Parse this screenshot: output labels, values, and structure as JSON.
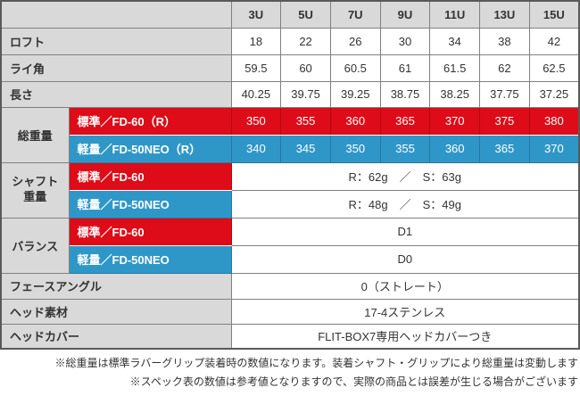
{
  "spec_table": {
    "corner": "",
    "columns": [
      "3U",
      "5U",
      "7U",
      "9U",
      "11U",
      "13U",
      "15U"
    ],
    "rows": {
      "loft": {
        "label": "ロフト",
        "values": [
          "18",
          "22",
          "26",
          "30",
          "34",
          "38",
          "42"
        ]
      },
      "lie": {
        "label": "ライ角",
        "values": [
          "59.5",
          "60",
          "60.5",
          "61",
          "61.5",
          "62",
          "62.5"
        ]
      },
      "length": {
        "label": "長さ",
        "values": [
          "40.25",
          "39.75",
          "39.25",
          "38.75",
          "38.25",
          "37.75",
          "37.25"
        ]
      },
      "total_weight": {
        "label": "総重量",
        "standard": {
          "sublabel": "標準／FD-60（R）",
          "values": [
            "350",
            "355",
            "360",
            "365",
            "370",
            "375",
            "380"
          ]
        },
        "light": {
          "sublabel": "軽量／FD-50NEO（R）",
          "values": [
            "340",
            "345",
            "350",
            "355",
            "360",
            "365",
            "370"
          ]
        }
      },
      "shaft_weight": {
        "label": "シャフト\n重量",
        "standard": {
          "sublabel": "標準／FD-60",
          "value": "R：62g　／　S：63g"
        },
        "light": {
          "sublabel": "軽量／FD-50NEO",
          "value": "R：48g　／　S：49g"
        }
      },
      "balance": {
        "label": "バランス",
        "standard": {
          "sublabel": "標準／FD-60",
          "value": "D1"
        },
        "light": {
          "sublabel": "軽量／FD-50NEO",
          "value": "D0"
        }
      },
      "face_angle": {
        "label": "フェースアングル",
        "value": "0（ストレート）"
      },
      "head_material": {
        "label": "ヘッド素材",
        "value": "17-4ステンレス"
      },
      "head_cover": {
        "label": "ヘッドカバー",
        "value": "FLIT-BOX7専用ヘッドカバーつき"
      }
    }
  },
  "notes": [
    "※総重量は標準ラバーグリップ装着時の数値になります。装着シャフト・グリップにより総重量は変動します",
    "※スペック表の数値は参考値となりますので、実際の商品とは誤差が生じる場合がございます"
  ],
  "colors": {
    "standard_red": "#dd0c18",
    "light_blue": "#2f97c8",
    "header_gray": "#d9d9d9",
    "border_gray": "#808080"
  }
}
